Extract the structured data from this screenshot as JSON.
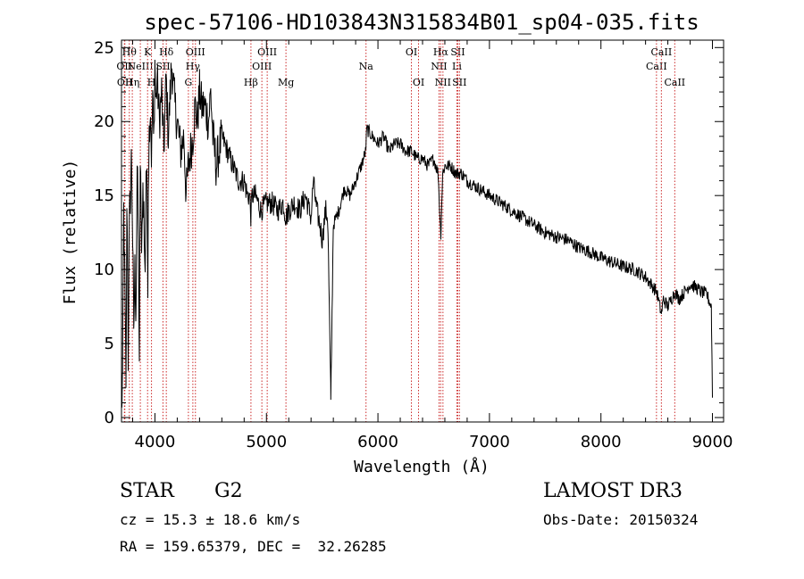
{
  "chart_data": {
    "type": "line",
    "title": "spec-57106-HD103843N315834B01_sp04-035.fits",
    "xlabel": "Wavelength (Å)",
    "ylabel": "Flux (relative)",
    "xlim": [
      3700,
      9100
    ],
    "ylim": [
      -0.3,
      25.5
    ],
    "x_ticks": [
      4000,
      5000,
      6000,
      7000,
      8000,
      9000
    ],
    "y_ticks": [
      0,
      5,
      10,
      15,
      20,
      25
    ],
    "grid": false,
    "legend": "none",
    "series": [
      {
        "name": "flux",
        "x": [
          3700,
          3710,
          3720,
          3730,
          3740,
          3750,
          3760,
          3770,
          3780,
          3790,
          3800,
          3810,
          3820,
          3830,
          3840,
          3850,
          3860,
          3870,
          3880,
          3890,
          3900,
          3910,
          3920,
          3930,
          3935,
          3940,
          3950,
          3960,
          3965,
          3970,
          3980,
          3990,
          4000,
          4010,
          4020,
          4040,
          4060,
          4080,
          4100,
          4120,
          4150,
          4180,
          4200,
          4230,
          4260,
          4280,
          4300,
          4320,
          4340,
          4360,
          4380,
          4400,
          4420,
          4450,
          4480,
          4500,
          4520,
          4550,
          4600,
          4650,
          4700,
          4750,
          4800,
          4830,
          4850,
          4861,
          4870,
          4900,
          4950,
          5000,
          5050,
          5100,
          5150,
          5175,
          5200,
          5250,
          5300,
          5350,
          5400,
          5420,
          5450,
          5480,
          5500,
          5530,
          5550,
          5577,
          5600,
          5650,
          5700,
          5750,
          5800,
          5850,
          5890,
          5900,
          5950,
          6000,
          6050,
          6100,
          6150,
          6200,
          6250,
          6300,
          6350,
          6400,
          6450,
          6500,
          6540,
          6563,
          6580,
          6600,
          6650,
          6700,
          6750,
          6800,
          6900,
          7000,
          7100,
          7200,
          7300,
          7400,
          7500,
          7600,
          7700,
          7800,
          7900,
          8000,
          8100,
          8200,
          8300,
          8400,
          8450,
          8500,
          8542,
          8560,
          8600,
          8662,
          8700,
          8750,
          8800,
          8850,
          8900,
          8950,
          8990,
          9000
        ],
        "values": [
          0.3,
          3,
          14,
          9,
          2,
          16,
          4,
          13,
          15,
          18,
          12,
          6,
          10,
          7,
          17,
          13,
          4,
          19,
          10,
          16,
          14,
          9,
          17,
          15,
          8,
          16,
          20,
          21,
          19,
          17,
          22,
          18,
          24,
          21,
          23,
          20,
          22,
          18,
          23,
          19,
          24,
          21,
          20,
          18,
          19,
          15,
          17,
          18,
          19,
          21,
          20,
          22,
          21,
          21,
          20,
          22,
          19,
          17,
          19,
          18,
          17,
          16,
          16,
          15,
          15,
          13.5,
          15,
          15,
          14,
          14.5,
          14.5,
          14,
          14.5,
          13.5,
          14,
          14.5,
          14,
          15,
          13.5,
          16,
          14,
          13,
          12,
          14,
          13.5,
          1.2,
          13,
          14,
          15.5,
          15,
          16,
          17,
          18,
          19.5,
          19,
          18.5,
          19,
          18,
          18.5,
          18.5,
          18,
          18,
          17.5,
          17.5,
          17,
          17.5,
          16.5,
          12.2,
          16.5,
          17,
          17,
          16.5,
          16.5,
          16,
          15.5,
          15,
          14.5,
          14,
          13.5,
          13,
          12.5,
          12.2,
          12,
          11.5,
          11.2,
          10.8,
          10.5,
          10.2,
          10,
          9.5,
          9,
          8.5,
          7,
          8,
          7.5,
          8.5,
          8,
          8.5,
          9,
          8.8,
          8.5,
          8.3,
          7.5,
          1.5
        ]
      }
    ],
    "line_markers": [
      {
        "wavelength": 3726,
        "label": "OII",
        "row": 2
      },
      {
        "wavelength": 3730,
        "label": "OII",
        "row": 3
      },
      {
        "wavelength": 3770,
        "label": "Hθ",
        "row": 1
      },
      {
        "wavelength": 3797,
        "label": "Hη",
        "row": 3
      },
      {
        "wavelength": 3869,
        "label": "NeIII",
        "row": 2
      },
      {
        "wavelength": 3934,
        "label": "K",
        "row": 1
      },
      {
        "wavelength": 3969,
        "label": "H",
        "row": 3
      },
      {
        "wavelength": 4072,
        "label": "SII",
        "row": 2
      },
      {
        "wavelength": 4102,
        "label": "Hδ",
        "row": 1
      },
      {
        "wavelength": 4300,
        "label": "G",
        "row": 3
      },
      {
        "wavelength": 4340,
        "label": "Hγ",
        "row": 2
      },
      {
        "wavelength": 4363,
        "label": "OIII",
        "row": 1
      },
      {
        "wavelength": 4861,
        "label": "Hβ",
        "row": 3
      },
      {
        "wavelength": 4959,
        "label": "OIII",
        "row": 2
      },
      {
        "wavelength": 5007,
        "label": "OIII",
        "row": 1
      },
      {
        "wavelength": 5175,
        "label": "Mg",
        "row": 3
      },
      {
        "wavelength": 5893,
        "label": "Na",
        "row": 2
      },
      {
        "wavelength": 6300,
        "label": "OI",
        "row": 1
      },
      {
        "wavelength": 6364,
        "label": "OI",
        "row": 3
      },
      {
        "wavelength": 6548,
        "label": "NII",
        "row": 2
      },
      {
        "wavelength": 6563,
        "label": "Hα",
        "row": 1
      },
      {
        "wavelength": 6583,
        "label": "NII",
        "row": 3
      },
      {
        "wavelength": 6708,
        "label": "Li",
        "row": 2
      },
      {
        "wavelength": 6716,
        "label": "SII",
        "row": 1
      },
      {
        "wavelength": 6731,
        "label": "SII",
        "row": 3
      },
      {
        "wavelength": 8498,
        "label": "CaII",
        "row": 2
      },
      {
        "wavelength": 8542,
        "label": "CaII",
        "row": 1
      },
      {
        "wavelength": 8662,
        "label": "CaII",
        "row": 3
      }
    ]
  },
  "info": {
    "object_class": "STAR",
    "subclass": "G2",
    "survey": "LAMOST DR3",
    "redshift_line": "cz = 15.3 ± 18.6 km/s",
    "obs_date_line": "Obs-Date: 20150324",
    "coords_line": "RA = 159.65379, DEC =  32.26285"
  },
  "colors": {
    "spectrum": "#000000",
    "marker_line": "#cc2a2a",
    "axis": "#000000"
  }
}
